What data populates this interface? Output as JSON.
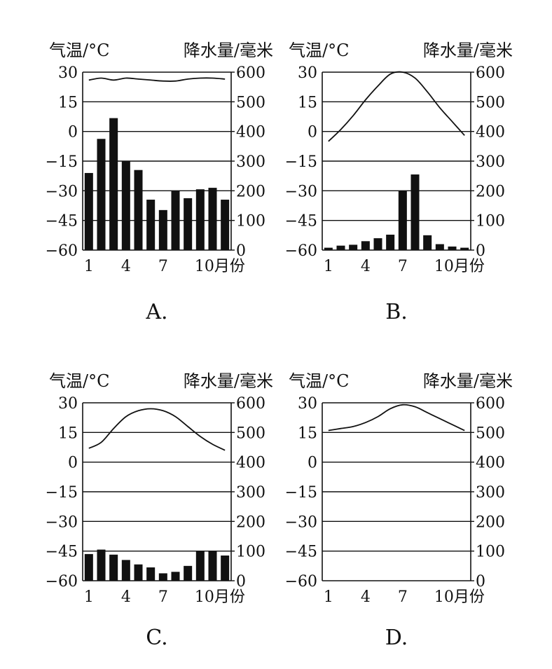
{
  "chart_data": [
    {
      "type": "bar",
      "panel_label": "A.",
      "ylabel_left": "气温/°C",
      "ylabel_right": "降水量/毫米",
      "x": [
        1,
        2,
        3,
        4,
        5,
        6,
        7,
        8,
        9,
        10,
        11,
        12
      ],
      "xticks": [
        "1",
        "4",
        "7",
        "10月份"
      ],
      "ylim_left": [
        -60,
        30
      ],
      "ylim_right": [
        0,
        600
      ],
      "yticks_left": [
        "30",
        "15",
        "0",
        "-15",
        "-30",
        "-45",
        "-60"
      ],
      "yticks_right": [
        "600",
        "500",
        "400",
        "300",
        "200",
        "100",
        "0"
      ],
      "grid": true,
      "temperature": [
        26,
        27,
        26,
        27,
        26.5,
        26,
        25.5,
        25.5,
        26.5,
        27,
        27,
        26.5
      ],
      "precipitation": [
        260,
        375,
        445,
        300,
        270,
        170,
        135,
        200,
        175,
        205,
        210,
        170
      ]
    },
    {
      "type": "bar",
      "panel_label": "B.",
      "ylabel_left": "气温/°C",
      "ylabel_right": "降水量/毫米",
      "x": [
        1,
        2,
        3,
        4,
        5,
        6,
        7,
        8,
        9,
        10,
        11,
        12
      ],
      "xticks": [
        "1",
        "4",
        "7",
        "10月份"
      ],
      "ylim_left": [
        -60,
        30
      ],
      "ylim_right": [
        0,
        600
      ],
      "yticks_left": [
        "30",
        "15",
        "0",
        "-15",
        "-30",
        "-45",
        "-60"
      ],
      "yticks_right": [
        "600",
        "500",
        "400",
        "300",
        "200",
        "100",
        "0"
      ],
      "grid": true,
      "temperature": [
        -5,
        1,
        8,
        16,
        23,
        29,
        30,
        27,
        20,
        12,
        5,
        -2
      ],
      "precipitation": [
        8,
        15,
        18,
        30,
        40,
        52,
        200,
        255,
        50,
        20,
        12,
        8
      ]
    },
    {
      "type": "bar",
      "panel_label": "C.",
      "ylabel_left": "气温/°C",
      "ylabel_right": "降水量/毫米",
      "x": [
        1,
        2,
        3,
        4,
        5,
        6,
        7,
        8,
        9,
        10,
        11,
        12
      ],
      "xticks": [
        "1",
        "4",
        "7",
        "10月份"
      ],
      "ylim_left": [
        -60,
        30
      ],
      "ylim_right": [
        0,
        600
      ],
      "yticks_left": [
        "30",
        "15",
        "0",
        "-15",
        "-30",
        "-45",
        "-60"
      ],
      "yticks_right": [
        "600",
        "500",
        "400",
        "300",
        "200",
        "100",
        "0"
      ],
      "grid": true,
      "temperature": [
        7,
        10,
        17,
        23,
        26,
        27,
        26,
        23,
        18,
        13,
        9,
        6
      ],
      "precipitation": [
        90,
        105,
        88,
        70,
        55,
        45,
        25,
        30,
        50,
        100,
        100,
        85
      ]
    },
    {
      "type": "line",
      "panel_label": "D.",
      "ylabel_left": "气温/°C",
      "ylabel_right": "降水量/毫米",
      "x": [
        1,
        2,
        3,
        4,
        5,
        6,
        7,
        8,
        9,
        10,
        11,
        12
      ],
      "xticks": [
        "1",
        "4",
        "7",
        "10月份"
      ],
      "ylim_left": [
        -60,
        30
      ],
      "ylim_right": [
        0,
        600
      ],
      "yticks_left": [
        "30",
        "15",
        "0",
        "-15",
        "-30",
        "-45",
        "-60"
      ],
      "yticks_right": [
        "600",
        "500",
        "400",
        "300",
        "200",
        "100",
        "0"
      ],
      "grid": true,
      "temperature": [
        16,
        17,
        18,
        20,
        23,
        27,
        29,
        28,
        25,
        22,
        19,
        16
      ],
      "precipitation": []
    }
  ]
}
